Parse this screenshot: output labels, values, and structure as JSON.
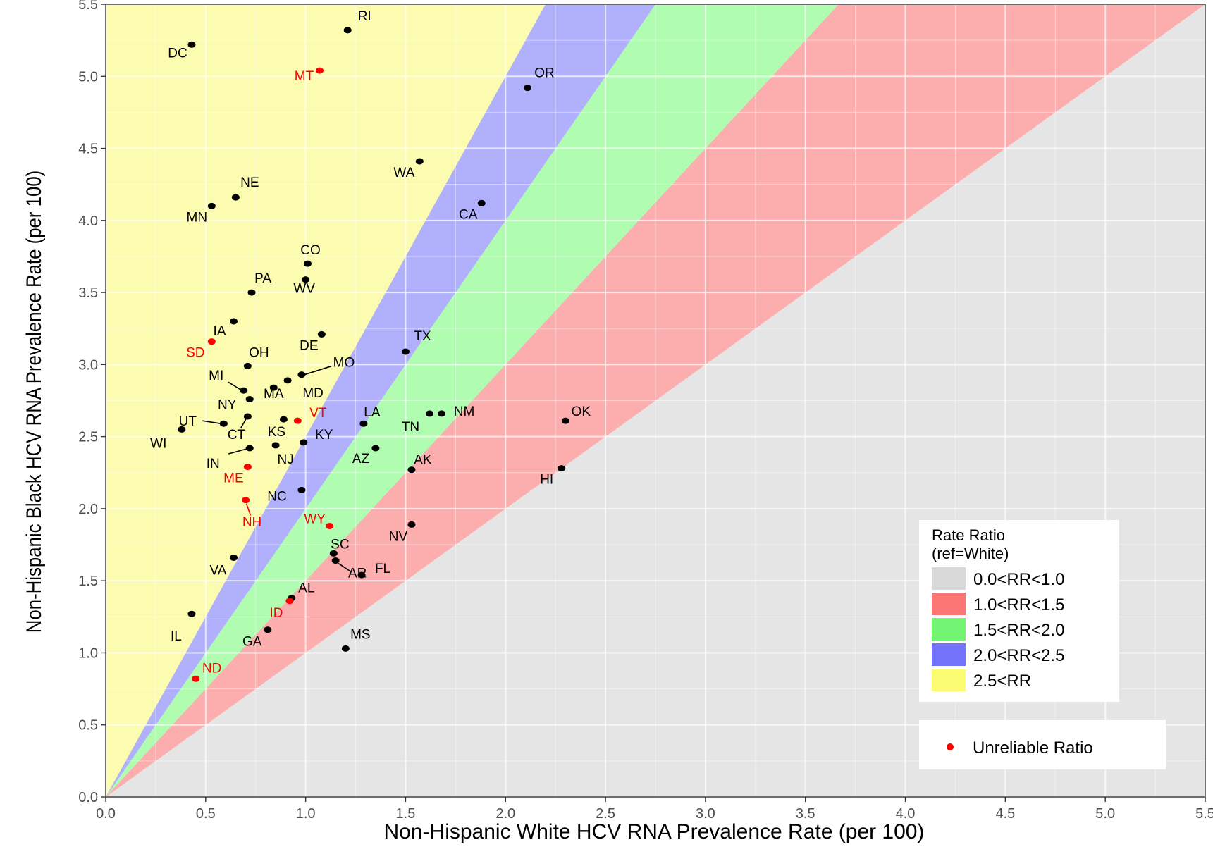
{
  "chart_data": {
    "type": "scatter",
    "xlabel": "Non-Hispanic White HCV RNA Prevalence Rate (per 100)",
    "ylabel": "Non-Hispanic Black HCV RNA Prevalence Rate (per 100)",
    "xlim": [
      0,
      5.5
    ],
    "ylim": [
      0,
      5.5
    ],
    "x_ticks": [
      "0.0",
      "0.5",
      "1.0",
      "1.5",
      "2.0",
      "2.5",
      "3.0",
      "3.5",
      "4.0",
      "4.5",
      "5.0",
      "5.5"
    ],
    "y_ticks": [
      "0.0",
      "0.5",
      "1.0",
      "1.5",
      "2.0",
      "2.5",
      "3.0",
      "3.5",
      "4.0",
      "4.5",
      "5.0",
      "5.5"
    ],
    "grid": true,
    "regions": [
      {
        "label": "0.0<RR<1.0",
        "min_ratio": 0.0,
        "max_ratio": 1.0,
        "color": "#e5e5e5",
        "key_color": "#d9d9d9"
      },
      {
        "label": "1.0<RR<1.5",
        "min_ratio": 1.0,
        "max_ratio": 1.5,
        "color": "#fcaeae",
        "key_color": "#fc7676"
      },
      {
        "label": "1.5<RR<2.0",
        "min_ratio": 1.5,
        "max_ratio": 2.0,
        "color": "#b0fcb0",
        "key_color": "#73f573"
      },
      {
        "label": "2.0<RR<2.5",
        "min_ratio": 2.0,
        "max_ratio": 2.5,
        "color": "#b0b0fc",
        "key_color": "#7373fc"
      },
      {
        "label": "2.5<RR",
        "min_ratio": 2.5,
        "max_ratio": null,
        "color": "#fcfcb0",
        "key_color": "#fcfc73"
      }
    ],
    "legend": {
      "title_line1": "Rate Ratio",
      "title_line2": "(ref=White)",
      "position": "bottom-right",
      "unreliable_label": "Unreliable Ratio"
    },
    "colors": {
      "reliable": "#000000",
      "unreliable": "#ff0000",
      "tick": "#4d4d4d",
      "grid": "#ffffff"
    },
    "points": [
      {
        "state": "RI",
        "x": 1.21,
        "y": 5.32,
        "unreliable": false
      },
      {
        "state": "DC",
        "x": 0.43,
        "y": 5.22,
        "unreliable": false
      },
      {
        "state": "MT",
        "x": 1.07,
        "y": 5.04,
        "unreliable": true
      },
      {
        "state": "OR",
        "x": 2.11,
        "y": 4.92,
        "unreliable": false
      },
      {
        "state": "WA",
        "x": 1.57,
        "y": 4.41,
        "unreliable": false
      },
      {
        "state": "NE",
        "x": 0.65,
        "y": 4.16,
        "unreliable": false
      },
      {
        "state": "CA",
        "x": 1.88,
        "y": 4.12,
        "unreliable": false
      },
      {
        "state": "MN",
        "x": 0.53,
        "y": 4.1,
        "unreliable": false
      },
      {
        "state": "CO",
        "x": 1.01,
        "y": 3.7,
        "unreliable": false
      },
      {
        "state": "WV",
        "x": 1.0,
        "y": 3.59,
        "unreliable": false
      },
      {
        "state": "PA",
        "x": 0.73,
        "y": 3.5,
        "unreliable": false
      },
      {
        "state": "IA",
        "x": 0.64,
        "y": 3.3,
        "unreliable": false
      },
      {
        "state": "DE",
        "x": 1.08,
        "y": 3.21,
        "unreliable": false
      },
      {
        "state": "SD",
        "x": 0.53,
        "y": 3.16,
        "unreliable": true
      },
      {
        "state": "TX",
        "x": 1.5,
        "y": 3.09,
        "unreliable": false
      },
      {
        "state": "OH",
        "x": 0.71,
        "y": 2.99,
        "unreliable": false
      },
      {
        "state": "MO",
        "x": 0.98,
        "y": 2.93,
        "unreliable": false
      },
      {
        "state": "MD",
        "x": 0.91,
        "y": 2.89,
        "unreliable": false
      },
      {
        "state": "MI",
        "x": 0.69,
        "y": 2.82,
        "unreliable": false
      },
      {
        "state": "NY",
        "x": 0.72,
        "y": 2.76,
        "unreliable": false
      },
      {
        "state": "MA",
        "x": 0.84,
        "y": 2.84,
        "unreliable": false
      },
      {
        "state": "NM",
        "x": 1.68,
        "y": 2.66,
        "unreliable": false
      },
      {
        "state": "TN",
        "x": 1.62,
        "y": 2.66,
        "unreliable": false
      },
      {
        "state": "CT",
        "x": 0.71,
        "y": 2.64,
        "unreliable": false
      },
      {
        "state": "VT",
        "x": 0.96,
        "y": 2.61,
        "unreliable": true
      },
      {
        "state": "KS",
        "x": 0.89,
        "y": 2.62,
        "unreliable": false
      },
      {
        "state": "OK",
        "x": 2.3,
        "y": 2.61,
        "unreliable": false
      },
      {
        "state": "UT",
        "x": 0.59,
        "y": 2.59,
        "unreliable": false
      },
      {
        "state": "LA",
        "x": 1.29,
        "y": 2.59,
        "unreliable": false
      },
      {
        "state": "WI",
        "x": 0.38,
        "y": 2.55,
        "unreliable": false
      },
      {
        "state": "KY",
        "x": 0.99,
        "y": 2.46,
        "unreliable": false
      },
      {
        "state": "NJ",
        "x": 0.85,
        "y": 2.44,
        "unreliable": false
      },
      {
        "state": "IN",
        "x": 0.72,
        "y": 2.42,
        "unreliable": false
      },
      {
        "state": "AZ",
        "x": 1.35,
        "y": 2.42,
        "unreliable": false
      },
      {
        "state": "ME",
        "x": 0.71,
        "y": 2.29,
        "unreliable": true
      },
      {
        "state": "HI",
        "x": 2.28,
        "y": 2.28,
        "unreliable": false
      },
      {
        "state": "AK",
        "x": 1.53,
        "y": 2.27,
        "unreliable": false
      },
      {
        "state": "NC",
        "x": 0.98,
        "y": 2.13,
        "unreliable": false
      },
      {
        "state": "NH",
        "x": 0.7,
        "y": 2.06,
        "unreliable": true
      },
      {
        "state": "NV",
        "x": 1.53,
        "y": 1.89,
        "unreliable": false
      },
      {
        "state": "WY",
        "x": 1.12,
        "y": 1.88,
        "unreliable": true
      },
      {
        "state": "SC",
        "x": 1.14,
        "y": 1.69,
        "unreliable": false
      },
      {
        "state": "VA",
        "x": 0.64,
        "y": 1.66,
        "unreliable": false
      },
      {
        "state": "AR",
        "x": 1.15,
        "y": 1.64,
        "unreliable": false
      },
      {
        "state": "FL",
        "x": 1.28,
        "y": 1.54,
        "unreliable": false
      },
      {
        "state": "AL",
        "x": 0.93,
        "y": 1.38,
        "unreliable": false
      },
      {
        "state": "ID",
        "x": 0.92,
        "y": 1.36,
        "unreliable": true
      },
      {
        "state": "IL",
        "x": 0.43,
        "y": 1.27,
        "unreliable": false
      },
      {
        "state": "GA",
        "x": 0.81,
        "y": 1.16,
        "unreliable": false
      },
      {
        "state": "MS",
        "x": 1.2,
        "y": 1.03,
        "unreliable": false
      },
      {
        "state": "ND",
        "x": 0.45,
        "y": 0.82,
        "unreliable": true
      }
    ]
  }
}
